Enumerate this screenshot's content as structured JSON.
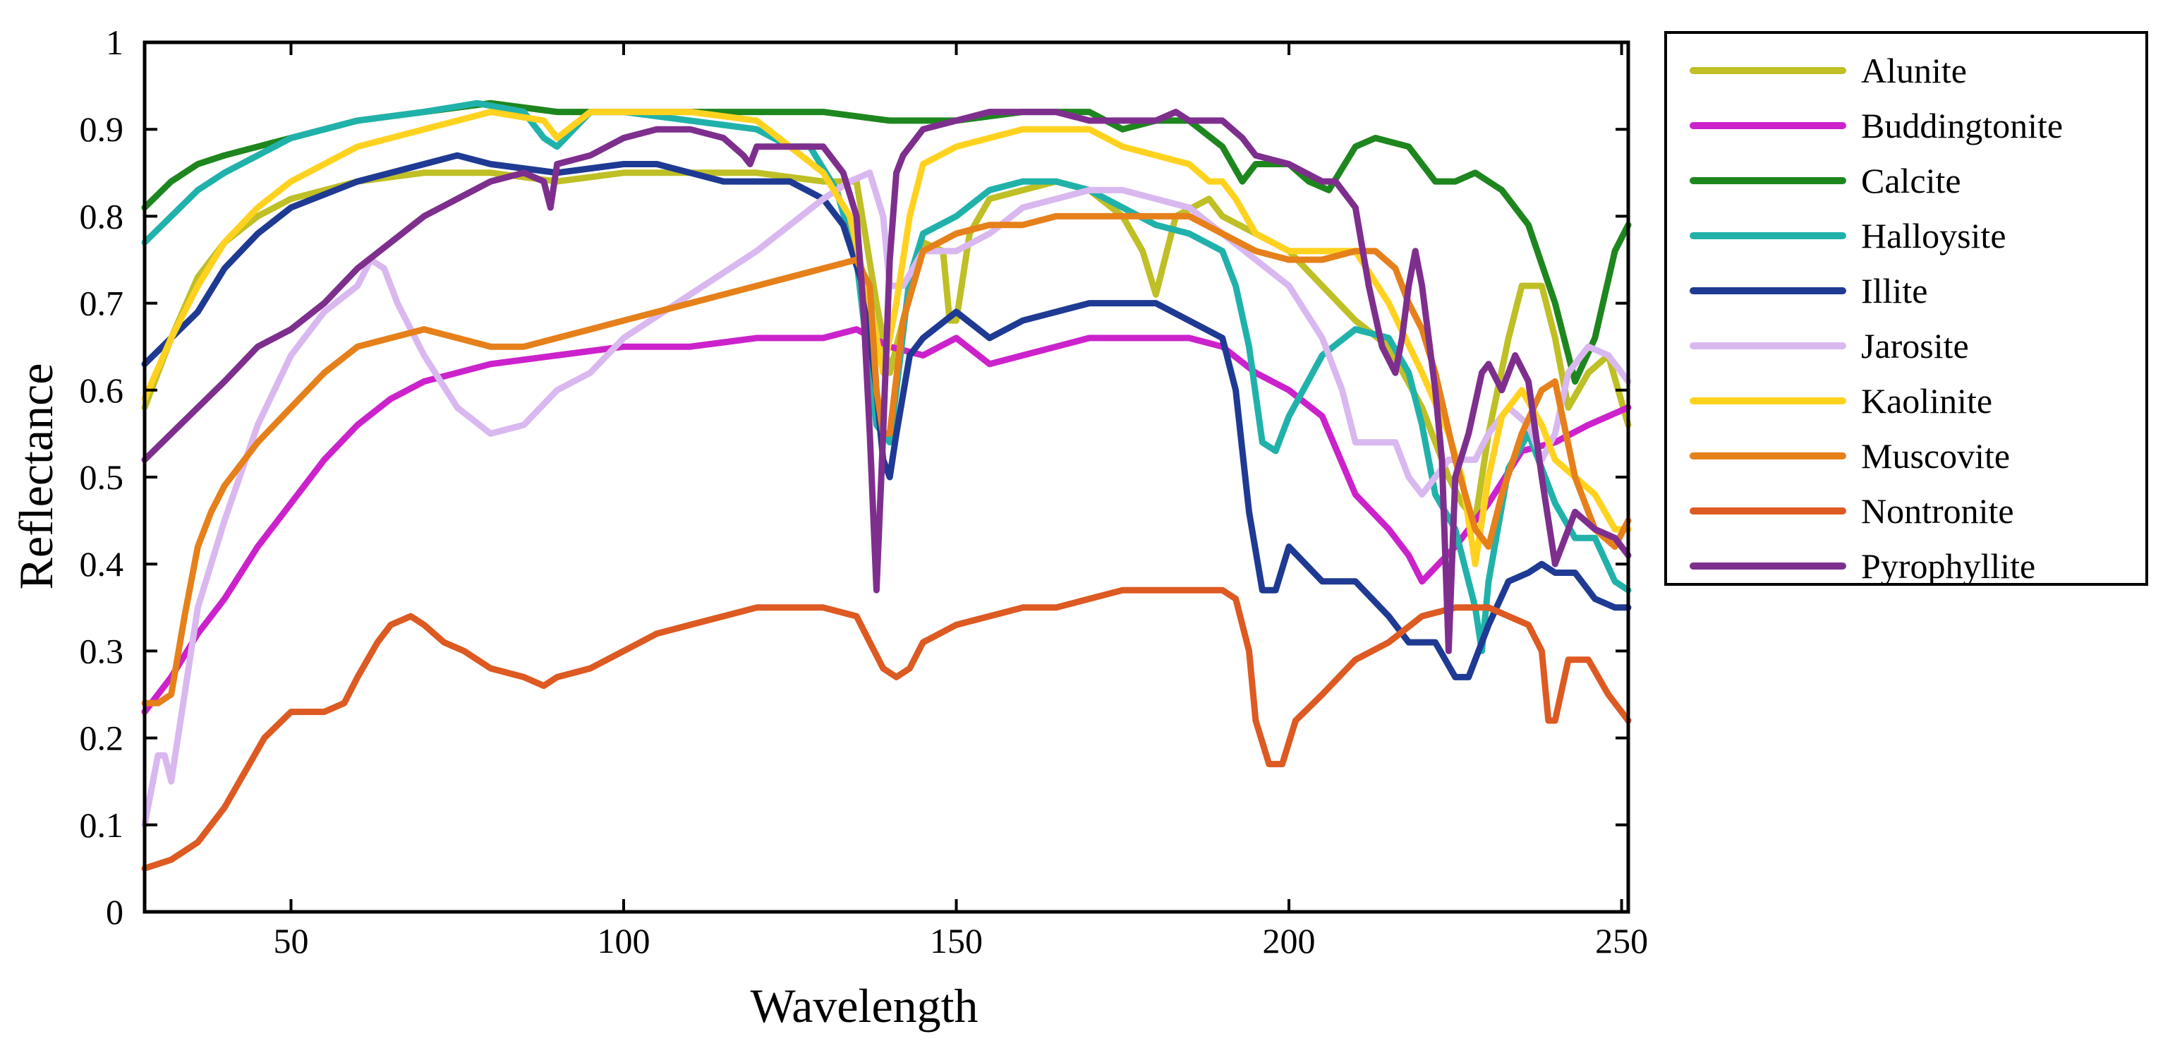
{
  "chart_data": {
    "type": "line",
    "title": "",
    "xlabel": "Wavelength",
    "ylabel": "Reflectance",
    "xlim": [
      28,
      251
    ],
    "ylim": [
      0,
      1
    ],
    "xticks": [
      50,
      100,
      150,
      200,
      250
    ],
    "yticks": [
      0,
      0.1,
      0.2,
      0.3,
      0.4,
      0.5,
      0.6,
      0.7,
      0.8,
      0.9,
      1
    ],
    "ytick_labels": [
      "0",
      "0.1",
      "0.2",
      "0.3",
      "0.4",
      "0.5",
      "0.6",
      "0.7",
      "0.8",
      "0.9",
      "1"
    ],
    "grid": false,
    "legend_position": "outside-right",
    "series": [
      {
        "name": "Alunite",
        "color": "#BFBF26",
        "x": [
          28,
          32,
          36,
          40,
          45,
          50,
          60,
          70,
          80,
          90,
          100,
          110,
          120,
          130,
          135,
          138,
          140,
          145,
          148,
          149,
          150,
          152,
          155,
          160,
          165,
          170,
          175,
          178,
          180,
          183,
          188,
          190,
          195,
          200,
          205,
          210,
          215,
          220,
          224,
          226,
          228,
          230,
          233,
          235,
          238,
          240,
          242,
          245,
          248,
          251
        ],
        "y": [
          0.58,
          0.66,
          0.73,
          0.77,
          0.8,
          0.82,
          0.84,
          0.85,
          0.85,
          0.84,
          0.85,
          0.85,
          0.85,
          0.84,
          0.84,
          0.7,
          0.62,
          0.77,
          0.76,
          0.68,
          0.68,
          0.78,
          0.82,
          0.83,
          0.84,
          0.83,
          0.8,
          0.76,
          0.71,
          0.8,
          0.82,
          0.8,
          0.78,
          0.76,
          0.72,
          0.68,
          0.65,
          0.58,
          0.5,
          0.47,
          0.45,
          0.55,
          0.66,
          0.72,
          0.72,
          0.66,
          0.58,
          0.62,
          0.64,
          0.56
        ]
      },
      {
        "name": "Buddingtonite",
        "color": "#CC22CC",
        "x": [
          28,
          32,
          36,
          40,
          45,
          50,
          55,
          60,
          65,
          70,
          75,
          80,
          90,
          100,
          110,
          120,
          130,
          135,
          140,
          145,
          150,
          155,
          160,
          165,
          170,
          180,
          185,
          190,
          195,
          200,
          205,
          210,
          215,
          218,
          220,
          225,
          230,
          235,
          240,
          245,
          251
        ],
        "y": [
          0.23,
          0.27,
          0.32,
          0.36,
          0.42,
          0.47,
          0.52,
          0.56,
          0.59,
          0.61,
          0.62,
          0.63,
          0.64,
          0.65,
          0.65,
          0.66,
          0.66,
          0.67,
          0.65,
          0.64,
          0.66,
          0.63,
          0.64,
          0.65,
          0.66,
          0.66,
          0.66,
          0.65,
          0.62,
          0.6,
          0.57,
          0.48,
          0.44,
          0.41,
          0.38,
          0.42,
          0.47,
          0.53,
          0.54,
          0.56,
          0.58
        ]
      },
      {
        "name": "Calcite",
        "color": "#1E861E",
        "x": [
          28,
          32,
          36,
          40,
          45,
          50,
          60,
          70,
          80,
          90,
          100,
          110,
          120,
          130,
          140,
          145,
          150,
          160,
          170,
          175,
          180,
          185,
          190,
          193,
          195,
          200,
          203,
          206,
          210,
          213,
          218,
          222,
          225,
          228,
          232,
          236,
          240,
          243,
          246,
          249,
          251
        ],
        "y": [
          0.81,
          0.84,
          0.86,
          0.87,
          0.88,
          0.89,
          0.91,
          0.92,
          0.93,
          0.92,
          0.92,
          0.92,
          0.92,
          0.92,
          0.91,
          0.91,
          0.91,
          0.92,
          0.92,
          0.9,
          0.91,
          0.91,
          0.88,
          0.84,
          0.86,
          0.86,
          0.84,
          0.83,
          0.88,
          0.89,
          0.88,
          0.84,
          0.84,
          0.85,
          0.83,
          0.79,
          0.7,
          0.61,
          0.66,
          0.76,
          0.79
        ]
      },
      {
        "name": "Halloysite",
        "color": "#20B2AA",
        "x": [
          28,
          32,
          36,
          40,
          45,
          50,
          60,
          70,
          78,
          85,
          88,
          90,
          95,
          100,
          110,
          120,
          125,
          128,
          132,
          135,
          137,
          138,
          140,
          141,
          143,
          145,
          150,
          155,
          160,
          165,
          170,
          180,
          185,
          190,
          192,
          194,
          196,
          198,
          200,
          205,
          210,
          215,
          218,
          220,
          222,
          225,
          228,
          229,
          230,
          233,
          236,
          240,
          243,
          246,
          249,
          251
        ],
        "y": [
          0.77,
          0.8,
          0.83,
          0.85,
          0.87,
          0.89,
          0.91,
          0.92,
          0.93,
          0.92,
          0.89,
          0.88,
          0.92,
          0.92,
          0.91,
          0.9,
          0.88,
          0.88,
          0.83,
          0.75,
          0.62,
          0.56,
          0.54,
          0.6,
          0.73,
          0.78,
          0.8,
          0.83,
          0.84,
          0.84,
          0.83,
          0.79,
          0.78,
          0.76,
          0.72,
          0.65,
          0.54,
          0.53,
          0.57,
          0.64,
          0.67,
          0.66,
          0.62,
          0.56,
          0.48,
          0.44,
          0.35,
          0.3,
          0.38,
          0.51,
          0.55,
          0.47,
          0.43,
          0.43,
          0.38,
          0.37
        ]
      },
      {
        "name": "Illite",
        "color": "#1F3A93",
        "x": [
          28,
          32,
          36,
          40,
          45,
          50,
          60,
          70,
          75,
          80,
          90,
          100,
          105,
          110,
          115,
          120,
          125,
          130,
          133,
          136,
          138,
          139,
          140,
          141,
          143,
          145,
          150,
          155,
          160,
          165,
          170,
          175,
          180,
          185,
          190,
          192,
          194,
          196,
          198,
          200,
          205,
          210,
          215,
          218,
          220,
          222,
          225,
          227,
          230,
          233,
          236,
          238,
          240,
          243,
          246,
          249,
          251
        ],
        "y": [
          0.63,
          0.66,
          0.69,
          0.74,
          0.78,
          0.81,
          0.84,
          0.86,
          0.87,
          0.86,
          0.85,
          0.86,
          0.86,
          0.85,
          0.84,
          0.84,
          0.84,
          0.82,
          0.79,
          0.72,
          0.6,
          0.52,
          0.5,
          0.55,
          0.64,
          0.66,
          0.69,
          0.66,
          0.68,
          0.69,
          0.7,
          0.7,
          0.7,
          0.68,
          0.66,
          0.6,
          0.46,
          0.37,
          0.37,
          0.42,
          0.38,
          0.38,
          0.34,
          0.31,
          0.31,
          0.31,
          0.27,
          0.27,
          0.33,
          0.38,
          0.39,
          0.4,
          0.39,
          0.39,
          0.36,
          0.35,
          0.35
        ]
      },
      {
        "name": "Jarosite",
        "color": "#D9B8F0",
        "x": [
          28,
          29,
          30,
          31,
          32,
          34,
          36,
          40,
          45,
          50,
          55,
          60,
          62,
          64,
          66,
          70,
          75,
          80,
          85,
          90,
          95,
          100,
          110,
          120,
          125,
          130,
          134,
          137,
          139,
          140,
          142,
          145,
          150,
          155,
          160,
          165,
          170,
          175,
          180,
          185,
          190,
          195,
          200,
          205,
          208,
          210,
          213,
          216,
          218,
          220,
          222,
          224,
          228,
          230,
          233,
          236,
          238,
          240,
          242,
          245,
          248,
          251
        ],
        "y": [
          0.1,
          0.14,
          0.18,
          0.18,
          0.15,
          0.25,
          0.35,
          0.45,
          0.56,
          0.64,
          0.69,
          0.72,
          0.75,
          0.74,
          0.7,
          0.64,
          0.58,
          0.55,
          0.56,
          0.6,
          0.62,
          0.66,
          0.71,
          0.76,
          0.79,
          0.82,
          0.84,
          0.85,
          0.8,
          0.72,
          0.72,
          0.76,
          0.76,
          0.78,
          0.81,
          0.82,
          0.83,
          0.83,
          0.82,
          0.81,
          0.78,
          0.75,
          0.72,
          0.66,
          0.6,
          0.54,
          0.54,
          0.54,
          0.5,
          0.48,
          0.5,
          0.52,
          0.52,
          0.55,
          0.58,
          0.56,
          0.52,
          0.55,
          0.62,
          0.65,
          0.64,
          0.61
        ]
      },
      {
        "name": "Kaolinite",
        "color": "#FFD21F",
        "x": [
          28,
          32,
          36,
          40,
          45,
          50,
          60,
          70,
          80,
          88,
          90,
          95,
          100,
          110,
          120,
          125,
          130,
          134,
          137,
          139,
          141,
          143,
          145,
          150,
          155,
          160,
          165,
          170,
          175,
          180,
          185,
          188,
          190,
          192,
          195,
          200,
          205,
          210,
          215,
          220,
          224,
          226,
          228,
          230,
          232,
          235,
          238,
          240,
          243,
          246,
          249,
          251
        ],
        "y": [
          0.59,
          0.66,
          0.72,
          0.77,
          0.81,
          0.84,
          0.88,
          0.9,
          0.92,
          0.91,
          0.89,
          0.92,
          0.92,
          0.92,
          0.91,
          0.88,
          0.85,
          0.8,
          0.7,
          0.62,
          0.7,
          0.8,
          0.86,
          0.88,
          0.89,
          0.9,
          0.9,
          0.9,
          0.88,
          0.87,
          0.86,
          0.84,
          0.84,
          0.82,
          0.78,
          0.76,
          0.76,
          0.76,
          0.7,
          0.62,
          0.55,
          0.5,
          0.4,
          0.5,
          0.57,
          0.6,
          0.56,
          0.52,
          0.5,
          0.48,
          0.44,
          0.44
        ]
      },
      {
        "name": "Muscovite",
        "color": "#E6801A",
        "x": [
          28,
          30,
          32,
          34,
          36,
          38,
          40,
          45,
          50,
          55,
          60,
          65,
          70,
          75,
          80,
          85,
          90,
          95,
          100,
          110,
          120,
          130,
          135,
          137,
          138,
          139,
          140,
          142,
          145,
          150,
          155,
          160,
          165,
          170,
          175,
          180,
          185,
          190,
          195,
          200,
          205,
          210,
          213,
          216,
          218,
          220,
          222,
          225,
          228,
          230,
          232,
          235,
          238,
          240,
          243,
          246,
          249,
          251
        ],
        "y": [
          0.24,
          0.24,
          0.25,
          0.34,
          0.42,
          0.46,
          0.49,
          0.54,
          0.58,
          0.62,
          0.65,
          0.66,
          0.67,
          0.66,
          0.65,
          0.65,
          0.66,
          0.67,
          0.68,
          0.7,
          0.72,
          0.74,
          0.75,
          0.72,
          0.6,
          0.55,
          0.55,
          0.68,
          0.76,
          0.78,
          0.79,
          0.79,
          0.8,
          0.8,
          0.8,
          0.8,
          0.8,
          0.78,
          0.76,
          0.75,
          0.75,
          0.76,
          0.76,
          0.74,
          0.7,
          0.67,
          0.62,
          0.52,
          0.44,
          0.42,
          0.48,
          0.55,
          0.6,
          0.61,
          0.5,
          0.44,
          0.42,
          0.45
        ]
      },
      {
        "name": "Nontronite",
        "color": "#DD5A22",
        "x": [
          28,
          32,
          36,
          40,
          43,
          46,
          50,
          52,
          55,
          58,
          60,
          63,
          65,
          68,
          70,
          73,
          76,
          80,
          85,
          88,
          90,
          95,
          100,
          105,
          110,
          115,
          120,
          125,
          130,
          135,
          137,
          139,
          141,
          143,
          145,
          150,
          155,
          160,
          165,
          170,
          175,
          180,
          185,
          189,
          190,
          192,
          194,
          195,
          197,
          199,
          201,
          205,
          210,
          215,
          220,
          225,
          230,
          233,
          236,
          238,
          239,
          240,
          242,
          245,
          248,
          251
        ],
        "y": [
          0.05,
          0.06,
          0.08,
          0.12,
          0.16,
          0.2,
          0.23,
          0.23,
          0.23,
          0.24,
          0.27,
          0.31,
          0.33,
          0.34,
          0.33,
          0.31,
          0.3,
          0.28,
          0.27,
          0.26,
          0.27,
          0.28,
          0.3,
          0.32,
          0.33,
          0.34,
          0.35,
          0.35,
          0.35,
          0.34,
          0.31,
          0.28,
          0.27,
          0.28,
          0.31,
          0.33,
          0.34,
          0.35,
          0.35,
          0.36,
          0.37,
          0.37,
          0.37,
          0.37,
          0.37,
          0.36,
          0.3,
          0.22,
          0.17,
          0.17,
          0.22,
          0.25,
          0.29,
          0.31,
          0.34,
          0.35,
          0.35,
          0.34,
          0.33,
          0.3,
          0.22,
          0.22,
          0.29,
          0.29,
          0.25,
          0.22
        ]
      },
      {
        "name": "Pyrophyllite",
        "color": "#7E2F8E",
        "x": [
          28,
          32,
          36,
          40,
          45,
          50,
          55,
          60,
          65,
          70,
          75,
          80,
          85,
          88,
          89,
          90,
          95,
          100,
          105,
          110,
          115,
          118,
          119,
          120,
          125,
          130,
          133,
          135,
          136,
          137,
          138,
          139,
          140,
          141,
          142,
          145,
          150,
          155,
          160,
          165,
          170,
          175,
          180,
          183,
          185,
          190,
          193,
          195,
          200,
          205,
          207,
          210,
          212,
          214,
          216,
          217,
          218,
          219,
          220,
          222,
          223,
          224,
          225,
          227,
          229,
          230,
          232,
          234,
          236,
          238,
          240,
          243,
          246,
          249,
          251
        ],
        "y": [
          0.52,
          0.55,
          0.58,
          0.61,
          0.65,
          0.67,
          0.7,
          0.74,
          0.77,
          0.8,
          0.82,
          0.84,
          0.85,
          0.84,
          0.81,
          0.86,
          0.87,
          0.89,
          0.9,
          0.9,
          0.89,
          0.87,
          0.86,
          0.88,
          0.88,
          0.88,
          0.85,
          0.8,
          0.7,
          0.55,
          0.37,
          0.55,
          0.75,
          0.85,
          0.87,
          0.9,
          0.91,
          0.92,
          0.92,
          0.92,
          0.91,
          0.91,
          0.91,
          0.92,
          0.91,
          0.91,
          0.89,
          0.87,
          0.86,
          0.84,
          0.84,
          0.81,
          0.72,
          0.65,
          0.62,
          0.66,
          0.72,
          0.76,
          0.72,
          0.6,
          0.52,
          0.3,
          0.5,
          0.55,
          0.62,
          0.63,
          0.6,
          0.64,
          0.61,
          0.5,
          0.4,
          0.46,
          0.44,
          0.43,
          0.41
        ]
      }
    ]
  }
}
